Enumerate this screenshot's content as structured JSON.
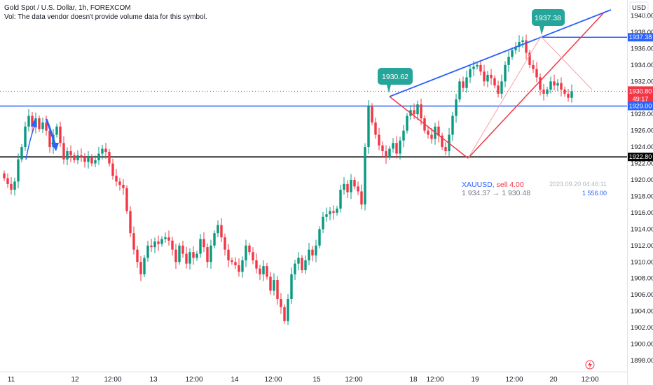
{
  "header": {
    "title": "Gold Spot / U.S. Dollar, 1h, FOREXCOM",
    "volume_note": "Vol: The data vendor doesn't provide volume data for this symbol."
  },
  "price_axis": {
    "currency": "USD",
    "ticks": [
      "1940.00",
      "1938.00",
      "1936.00",
      "1934.00",
      "1932.00",
      "1930.00",
      "1928.00",
      "1926.00",
      "1924.00",
      "1922.00",
      "1920.00",
      "1918.00",
      "1916.00",
      "1914.00",
      "1912.00",
      "1910.00",
      "1908.00",
      "1906.00",
      "1904.00",
      "1902.00",
      "1900.00",
      "1898.00"
    ],
    "labels": {
      "high_level": "1937.38",
      "last_price": "1930.80",
      "countdown": "49:17",
      "support_level": "1929.00",
      "low_level": "1922.80"
    }
  },
  "time_axis": {
    "ticks": [
      "11",
      "12",
      "12:00",
      "13",
      "12:00",
      "14",
      "12:00",
      "15",
      "12:00",
      "18",
      "12:00",
      "19",
      "12:00",
      "20",
      "12:00"
    ]
  },
  "callouts": {
    "left_peak": "1930.62",
    "right_peak": "1937.38"
  },
  "trade": {
    "symbol": "XAUUSD,",
    "action": "sell 4.00",
    "price_move": "1 934.37 → 1 930.48",
    "timestamp": "2023.09.20 04:46:11",
    "amount": "1 556.00"
  },
  "chart_data": {
    "type": "candlestick",
    "symbol": "XAUUSD",
    "interval": "1h",
    "ylim": [
      1897.3,
      1941.0
    ],
    "horizontal_lines": [
      1937.38,
      1929.0,
      1922.8
    ],
    "last_price": 1930.8,
    "closes": [
      1920.2,
      1919.5,
      1918.8,
      1919.8,
      1922.5,
      1924.0,
      1926.5,
      1927.8,
      1926.5,
      1927.5,
      1926.2,
      1927.0,
      1926.0,
      1924.0,
      1925.5,
      1926.5,
      1924.5,
      1922.5,
      1923.5,
      1923.0,
      1922.4,
      1923.0,
      1922.8,
      1922.2,
      1922.8,
      1922.0,
      1922.4,
      1923.2,
      1923.8,
      1923.4,
      1922.0,
      1920.5,
      1919.8,
      1919.4,
      1919.0,
      1916.2,
      1913.5,
      1911.5,
      1910.0,
      1908.5,
      1910.5,
      1912.0,
      1911.8,
      1912.5,
      1912.2,
      1912.8,
      1913.0,
      1912.6,
      1911.5,
      1910.0,
      1912.0,
      1911.0,
      1909.8,
      1911.2,
      1910.5,
      1911.0,
      1912.8,
      1911.8,
      1910.0,
      1912.0,
      1913.5,
      1914.5,
      1913.0,
      1911.5,
      1910.2,
      1910.0,
      1909.6,
      1908.8,
      1910.2,
      1912.0,
      1911.2,
      1910.2,
      1909.2,
      1908.5,
      1909.5,
      1908.2,
      1906.5,
      1907.8,
      1905.5,
      1904.5,
      1902.8,
      1905.5,
      1908.5,
      1909.8,
      1910.5,
      1909.0,
      1910.2,
      1911.5,
      1910.8,
      1912.0,
      1914.0,
      1915.5,
      1915.8,
      1916.2,
      1916.0,
      1916.5,
      1918.8,
      1919.5,
      1918.5,
      1920.0,
      1919.2,
      1918.6,
      1917.0,
      1924.0,
      1929.0,
      1927.0,
      1925.5,
      1924.2,
      1923.5,
      1922.8,
      1923.8,
      1924.5,
      1923.2,
      1924.8,
      1926.0,
      1927.8,
      1928.5,
      1928.0,
      1929.2,
      1927.5,
      1926.0,
      1925.5,
      1925.0,
      1926.5,
      1925.4,
      1924.0,
      1923.5,
      1925.5,
      1927.8,
      1929.8,
      1932.0,
      1931.2,
      1932.5,
      1933.5,
      1933.8,
      1934.0,
      1933.2,
      1932.0,
      1932.8,
      1932.4,
      1931.5,
      1930.5,
      1932.0,
      1934.0,
      1935.0,
      1935.8,
      1936.2,
      1936.8,
      1937.0,
      1935.5,
      1934.0,
      1933.5,
      1932.5,
      1931.0,
      1930.5,
      1931.0,
      1932.0,
      1931.5,
      1931.8,
      1931.0,
      1930.5,
      1930.0,
      1930.8
    ]
  }
}
